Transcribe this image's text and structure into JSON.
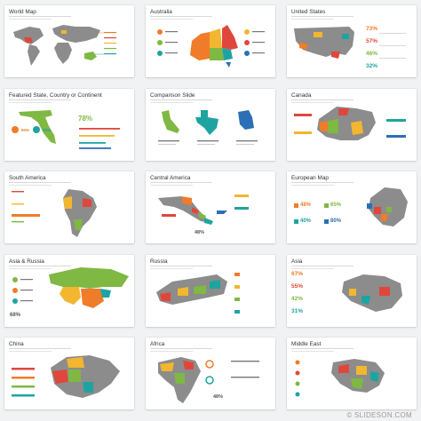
{
  "slides": [
    {
      "title": "World Map"
    },
    {
      "title": "Australia"
    },
    {
      "title": "United States",
      "pcts": [
        "73%",
        "57%",
        "46%",
        "32%"
      ]
    },
    {
      "title": "Featured State, Country or Continent",
      "pcts": [
        "78%",
        "60%",
        "40%"
      ]
    },
    {
      "title": "Comparison Slide"
    },
    {
      "title": "Canada"
    },
    {
      "title": "South America"
    },
    {
      "title": "Central America",
      "pcts": [
        "48%"
      ]
    },
    {
      "title": "European Map",
      "pcts": [
        "48%",
        "65%",
        "40%",
        "80%"
      ]
    },
    {
      "title": "Asia & Russia",
      "pcts": [
        "68%"
      ]
    },
    {
      "title": "Russia"
    },
    {
      "title": "Asia",
      "pcts": [
        "67%",
        "55%",
        "42%",
        "31%"
      ]
    },
    {
      "title": "China"
    },
    {
      "title": "Africa",
      "pcts": [
        "48%"
      ]
    },
    {
      "title": "Middle East"
    }
  ],
  "footer": "© SLIDESON.COM",
  "colors": {
    "orange": "#f07c2a",
    "red": "#e0473c",
    "yellow": "#f2b630",
    "green": "#7fb842",
    "teal": "#1ea4a0",
    "blue": "#2c6fb7",
    "gray": "#8c8c8c",
    "dark_gray": "#6f6f6f"
  }
}
